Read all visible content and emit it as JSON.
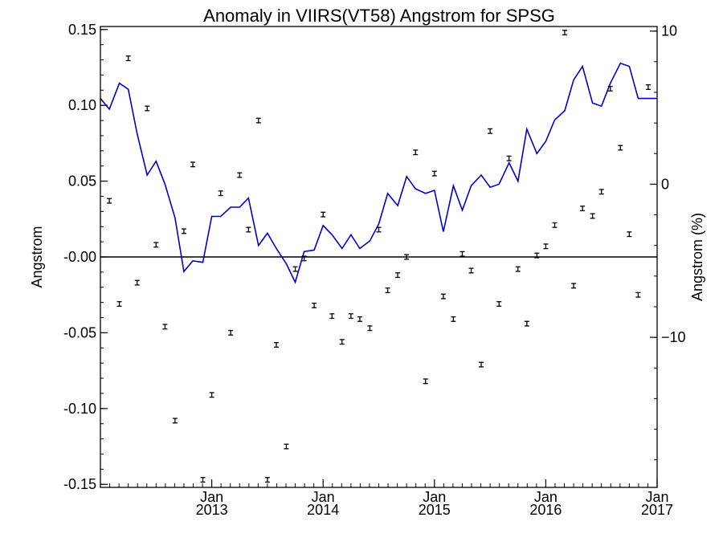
{
  "chart_data": {
    "type": "scatter",
    "title": "Anomaly in VIIRS(VT58) Angstrom for SPSG",
    "ylabel": "Angstrom",
    "y2label": "Angstrom (%)",
    "xlabel": "",
    "ylim": [
      -0.152,
      0.152
    ],
    "y2lim": [
      -19.8,
      10.3
    ],
    "xlim": [
      2012.0,
      2017.0
    ],
    "grid": false,
    "legend": "none",
    "y_ticks": [
      {
        "value": 0.15,
        "label": "0.15"
      },
      {
        "value": 0.1,
        "label": "0.10"
      },
      {
        "value": 0.05,
        "label": "0.05"
      },
      {
        "value": 0.0,
        "label": "-0.00"
      },
      {
        "value": -0.05,
        "label": "-0.05"
      },
      {
        "value": -0.1,
        "label": "-0.10"
      },
      {
        "value": -0.15,
        "label": "-0.15"
      }
    ],
    "y2_ticks": [
      {
        "value": 10,
        "label": "10"
      },
      {
        "value": 0,
        "label": "0"
      },
      {
        "value": -10,
        "label": "−10"
      }
    ],
    "x_ticks": [
      {
        "value": 2013.0,
        "month": "Jan",
        "year": "2013"
      },
      {
        "value": 2014.0,
        "month": "Jan",
        "year": "2014"
      },
      {
        "value": 2015.0,
        "month": "Jan",
        "year": "2015"
      },
      {
        "value": 2016.0,
        "month": "Jan",
        "year": "2016"
      },
      {
        "value": 2017.0,
        "month": "Jan",
        "year": "2017"
      }
    ],
    "colors": {
      "points": "#000000",
      "line": "#0000cc",
      "zero_line": "#000000"
    },
    "series": [
      {
        "kind": "points_with_errorbars",
        "axis": "left",
        "x": [
          2012.08,
          2012.17,
          2012.25,
          2012.33,
          2012.42,
          2012.5,
          2012.58,
          2012.67,
          2012.75,
          2012.83,
          2012.92,
          2013.0,
          2013.08,
          2013.17,
          2013.25,
          2013.33,
          2013.42,
          2013.5,
          2013.58,
          2013.67,
          2013.75,
          2013.83,
          2013.92,
          2014.0,
          2014.08,
          2014.17,
          2014.25,
          2014.33,
          2014.42,
          2014.5,
          2014.58,
          2014.67,
          2014.75,
          2014.83,
          2014.92,
          2015.0,
          2015.08,
          2015.17,
          2015.25,
          2015.33,
          2015.42,
          2015.5,
          2015.58,
          2015.67,
          2015.75,
          2015.83,
          2015.92,
          2016.0,
          2016.08,
          2016.17,
          2016.25,
          2016.33,
          2016.42,
          2016.5,
          2016.58,
          2016.67,
          2016.75,
          2016.83,
          2016.92
        ],
        "y": [
          0.037,
          -0.031,
          0.131,
          -0.017,
          0.098,
          0.008,
          -0.046,
          -0.108,
          0.017,
          0.061,
          -0.147,
          -0.091,
          0.042,
          -0.05,
          0.054,
          0.018,
          0.09,
          -0.147,
          -0.058,
          -0.125,
          -0.008,
          -0.001,
          -0.032,
          0.028,
          -0.039,
          -0.056,
          -0.039,
          -0.041,
          -0.047,
          0.018,
          -0.022,
          -0.012,
          0.0,
          0.069,
          -0.082,
          0.055,
          -0.026,
          -0.041,
          0.002,
          -0.009,
          -0.071,
          0.083,
          -0.031,
          0.065,
          -0.008,
          -0.044,
          0.001,
          0.007,
          0.021,
          0.148,
          -0.019,
          0.032,
          0.027,
          0.043,
          0.111,
          0.072,
          0.015,
          -0.025,
          0.112
        ],
        "error": 0.0015
      },
      {
        "kind": "line",
        "axis": "right",
        "x": [
          2012.0,
          2012.08,
          2012.17,
          2012.25,
          2012.33,
          2012.42,
          2012.5,
          2012.58,
          2012.67,
          2012.75,
          2012.83,
          2012.92,
          2013.0,
          2013.08,
          2013.17,
          2013.25,
          2013.33,
          2013.42,
          2013.5,
          2013.58,
          2013.67,
          2013.75,
          2013.83,
          2013.92,
          2014.0,
          2014.08,
          2014.17,
          2014.25,
          2014.33,
          2014.42,
          2014.5,
          2014.58,
          2014.67,
          2014.75,
          2014.83,
          2014.92,
          2015.0,
          2015.08,
          2015.17,
          2015.25,
          2015.33,
          2015.42,
          2015.5,
          2015.58,
          2015.67,
          2015.75,
          2015.83,
          2015.92,
          2016.0,
          2016.08,
          2016.17,
          2016.25,
          2016.33,
          2016.42,
          2016.5,
          2016.58,
          2016.67,
          2016.75,
          2016.83,
          2016.92,
          2017.0
        ],
        "y": [
          5.6,
          4.9,
          6.6,
          6.2,
          3.3,
          0.6,
          1.5,
          0.0,
          -2.2,
          -5.7,
          -5.0,
          -5.1,
          -2.1,
          -2.1,
          -1.5,
          -1.5,
          -0.9,
          -4.0,
          -3.2,
          -4.2,
          -5.2,
          -6.4,
          -4.4,
          -4.3,
          -2.7,
          -3.3,
          -4.2,
          -3.3,
          -4.2,
          -3.7,
          -2.6,
          -0.6,
          -1.4,
          0.5,
          -0.3,
          -0.6,
          -0.4,
          -3.1,
          -0.1,
          -1.7,
          -0.1,
          0.6,
          -0.2,
          0.0,
          1.4,
          0.2,
          3.6,
          2.0,
          2.8,
          4.2,
          4.8,
          6.8,
          7.7,
          5.3,
          5.1,
          6.6,
          7.9,
          7.7,
          5.6,
          5.6,
          5.6
        ]
      }
    ]
  }
}
